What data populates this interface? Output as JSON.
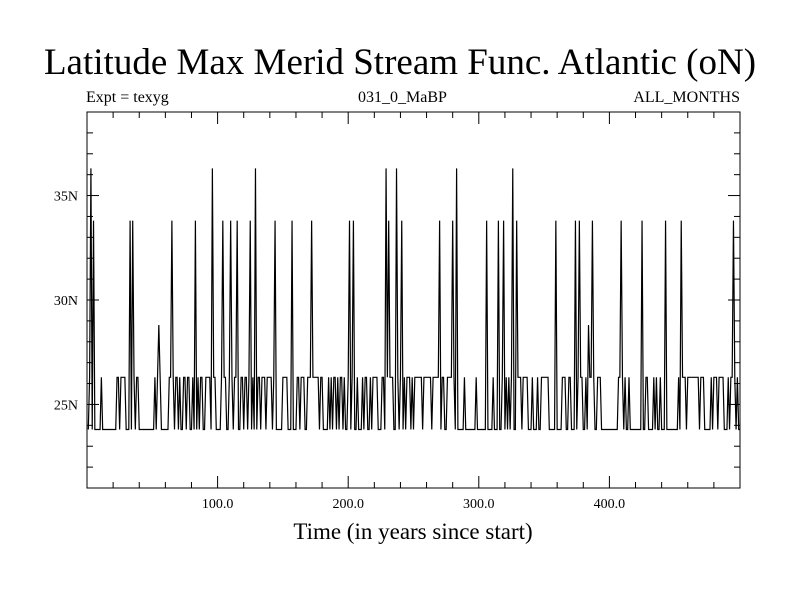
{
  "header": {
    "title": "Latitude Max Merid Stream Func. Atlantic (oN)",
    "expt": "Expt = texyg",
    "run": "031_0_MaBP",
    "period": "ALL_MONTHS"
  },
  "chart_data": {
    "type": "line",
    "title": "Latitude Max Merid Stream Func. Atlantic (oN)",
    "xlabel": "Time (in years since start)",
    "ylabel": "",
    "xlim": [
      0,
      500
    ],
    "ylim": [
      21,
      39
    ],
    "x_ticks": [
      100,
      200,
      300,
      400
    ],
    "x_tick_labels": [
      "100.0",
      "200.0",
      "300.0",
      "400.0"
    ],
    "y_ticks": [
      25,
      30,
      35
    ],
    "y_tick_labels": [
      "25N",
      "30N",
      "35N"
    ],
    "grid": false,
    "levels": [
      23.8,
      26.3,
      27.5,
      28.8,
      33.8,
      36.3
    ],
    "spikes": [
      {
        "x": 3,
        "y": 36.3
      },
      {
        "x": 5,
        "y": 33.8
      },
      {
        "x": 33,
        "y": 33.8
      },
      {
        "x": 35,
        "y": 33.8
      },
      {
        "x": 55,
        "y": 28.8
      },
      {
        "x": 65,
        "y": 33.8
      },
      {
        "x": 83,
        "y": 33.8
      },
      {
        "x": 96,
        "y": 36.3
      },
      {
        "x": 104,
        "y": 33.8
      },
      {
        "x": 110,
        "y": 33.8
      },
      {
        "x": 115,
        "y": 33.8
      },
      {
        "x": 125,
        "y": 33.8
      },
      {
        "x": 129,
        "y": 36.3
      },
      {
        "x": 144,
        "y": 33.8
      },
      {
        "x": 157,
        "y": 33.8
      },
      {
        "x": 172,
        "y": 33.8
      },
      {
        "x": 201,
        "y": 33.8
      },
      {
        "x": 204,
        "y": 33.8
      },
      {
        "x": 229,
        "y": 36.3
      },
      {
        "x": 231,
        "y": 33.8
      },
      {
        "x": 237,
        "y": 36.3
      },
      {
        "x": 241,
        "y": 33.8
      },
      {
        "x": 270,
        "y": 33.8
      },
      {
        "x": 280,
        "y": 33.8
      },
      {
        "x": 283,
        "y": 36.3
      },
      {
        "x": 306,
        "y": 33.8
      },
      {
        "x": 315,
        "y": 33.8
      },
      {
        "x": 319,
        "y": 33.8
      },
      {
        "x": 326,
        "y": 36.3
      },
      {
        "x": 329,
        "y": 33.8
      },
      {
        "x": 359,
        "y": 33.8
      },
      {
        "x": 374,
        "y": 33.8
      },
      {
        "x": 377,
        "y": 33.8
      },
      {
        "x": 384,
        "y": 28.8
      },
      {
        "x": 387,
        "y": 33.8
      },
      {
        "x": 409,
        "y": 33.8
      },
      {
        "x": 425,
        "y": 33.8
      },
      {
        "x": 443,
        "y": 33.8
      },
      {
        "x": 455,
        "y": 33.8
      },
      {
        "x": 495,
        "y": 33.8
      }
    ]
  }
}
